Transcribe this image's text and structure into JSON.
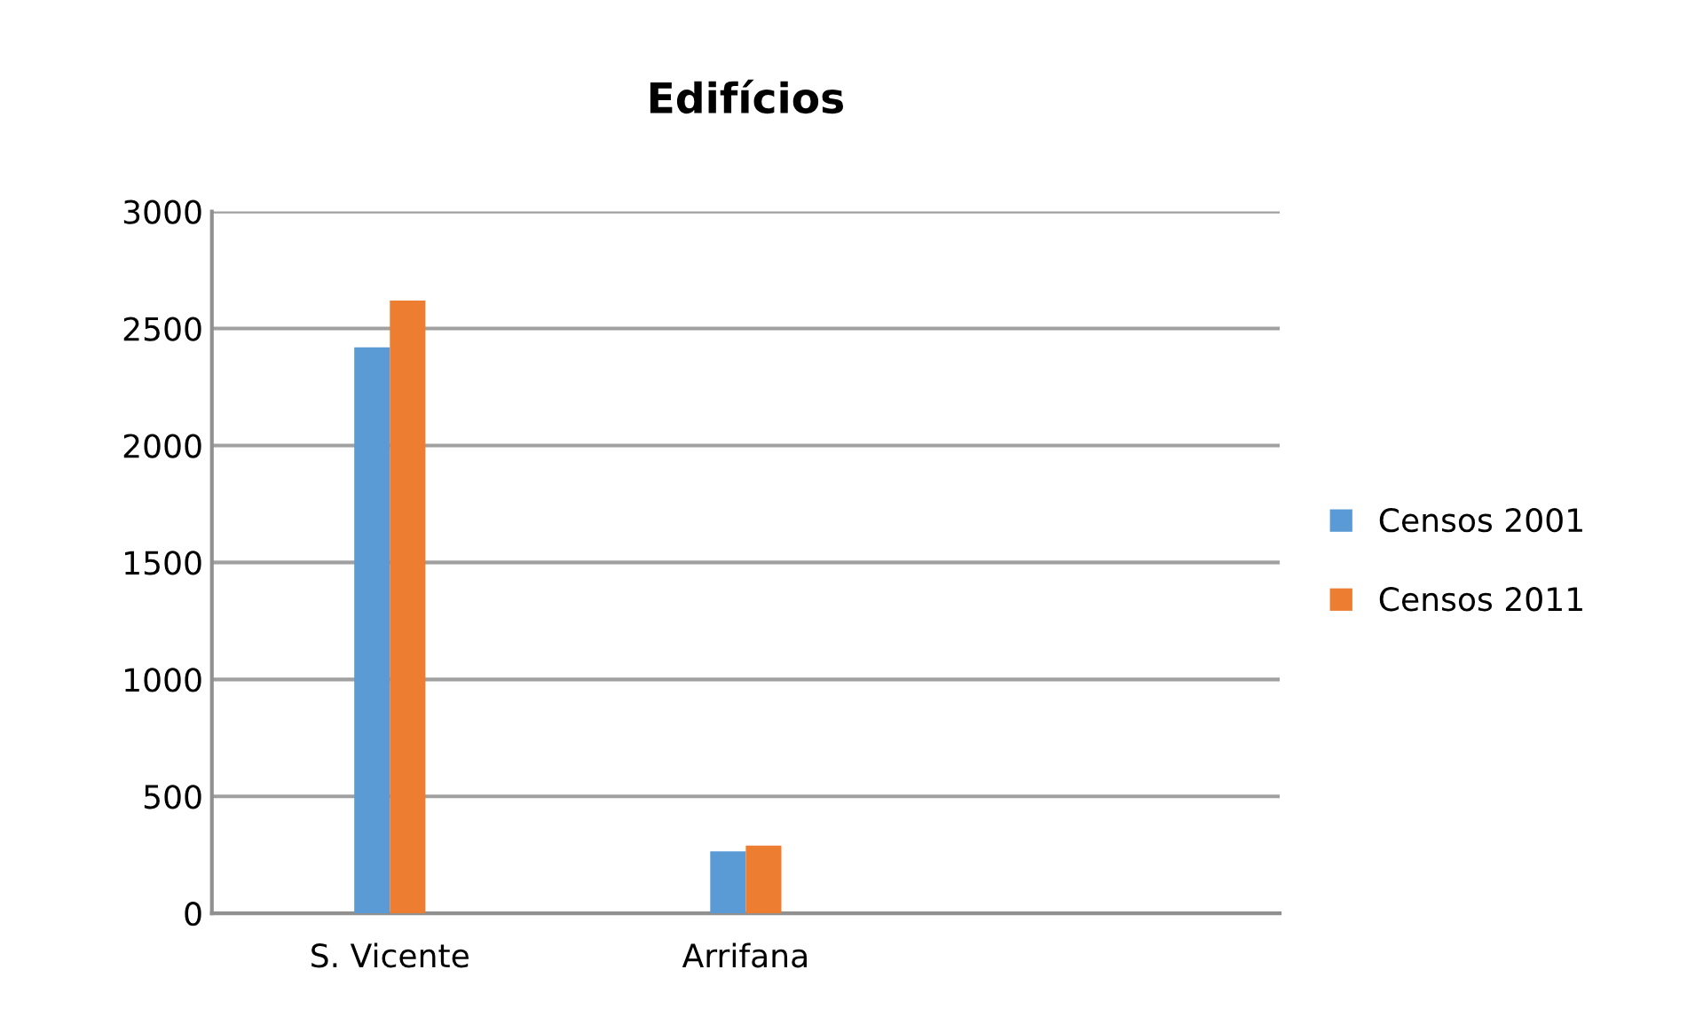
{
  "chart_data": {
    "type": "bar",
    "title": "Edifícios",
    "categories": [
      "S. Vicente",
      "Arrifana",
      null
    ],
    "series": [
      {
        "name": "Censos 2001",
        "color": "#5b9bd5",
        "values": [
          2420,
          265,
          null
        ]
      },
      {
        "name": "Censos 2011",
        "color": "#ed7d31",
        "values": [
          2620,
          290,
          null
        ]
      }
    ],
    "ylim": [
      0,
      3000
    ],
    "yticks": [
      0,
      500,
      1000,
      1500,
      2000,
      2500,
      3000
    ],
    "grid": "y",
    "legend": "right"
  }
}
